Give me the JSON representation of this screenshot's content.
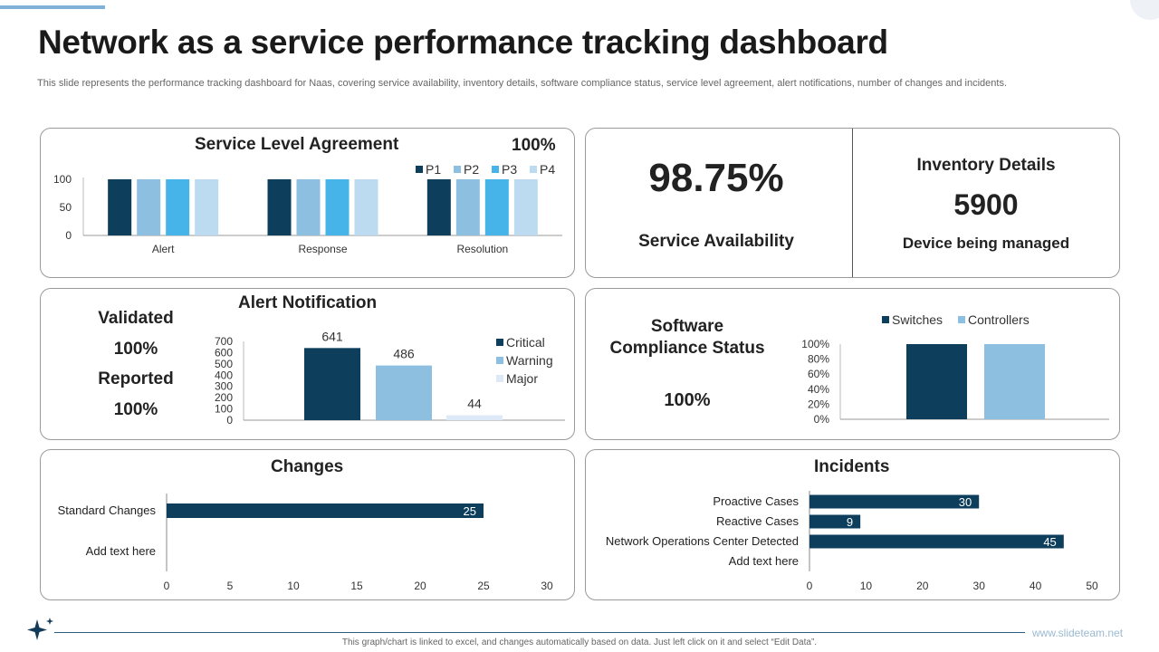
{
  "page": {
    "title": "Network as a service performance tracking dashboard",
    "subtitle": "This slide represents the performance tracking dashboard for Naas, covering service availability, inventory details, software compliance status, service level agreement, alert notifications, number of changes and incidents.",
    "footer_note": "This graph/chart is linked to excel, and changes automatically based on data. Just left click on it and select “Edit Data”.",
    "brand": "www.slideteam.net"
  },
  "sla": {
    "title": "Service Level Agreement",
    "percent": "100%"
  },
  "availability": {
    "value": "98.75%",
    "label": "Service Availability"
  },
  "inventory": {
    "title": "Inventory Details",
    "value": "5900",
    "label": "Device being managed"
  },
  "alert": {
    "title": "Alert Notification",
    "validated_label": "Validated",
    "validated_value": "100%",
    "reported_label": "Reported",
    "reported_value": "100%"
  },
  "software": {
    "title_line1": "Software",
    "title_line2": "Compliance Status",
    "value": "100%"
  },
  "changes": {
    "title": "Changes"
  },
  "incidents": {
    "title": "Incidents"
  },
  "colors": {
    "p1": "#0d3f5c",
    "p2": "#8dbfe0",
    "p3": "#46b4e8",
    "p4": "#bcdaf0",
    "major": "#dde9f7",
    "bar_dark": "#0d3f5c"
  },
  "chart_data": [
    {
      "id": "sla",
      "type": "bar",
      "categories": [
        "Alert",
        "Response",
        "Resolution"
      ],
      "series": [
        {
          "name": "P1",
          "values": [
            100,
            100,
            100
          ]
        },
        {
          "name": "P2",
          "values": [
            100,
            100,
            100
          ]
        },
        {
          "name": "P3",
          "values": [
            100,
            100,
            100
          ]
        },
        {
          "name": "P4",
          "values": [
            100,
            100,
            100
          ]
        }
      ],
      "yticks": [
        "0",
        "50",
        "100"
      ],
      "ylim": [
        0,
        100
      ],
      "legend": "top-right"
    },
    {
      "id": "alert",
      "type": "bar",
      "categories": [
        "Critical",
        "Warning",
        "Major"
      ],
      "values": [
        641,
        486,
        44
      ],
      "labels": [
        "641",
        "486",
        "44"
      ],
      "yticks": [
        "0",
        "100",
        "200",
        "300",
        "400",
        "500",
        "600",
        "700"
      ],
      "ylim": [
        0,
        700
      ],
      "legend": "right"
    },
    {
      "id": "software",
      "type": "bar",
      "series": [
        {
          "name": "Switches",
          "values": [
            100
          ]
        },
        {
          "name": "Controllers",
          "values": [
            100
          ]
        }
      ],
      "yticks": [
        "0%",
        "20%",
        "40%",
        "60%",
        "80%",
        "100%"
      ],
      "ylim": [
        0,
        100
      ],
      "legend": "top"
    },
    {
      "id": "changes",
      "type": "bar",
      "orientation": "horizontal",
      "categories": [
        "Standard Changes",
        "Add text here"
      ],
      "values": [
        25,
        0
      ],
      "labels": [
        "25",
        ""
      ],
      "xticks": [
        "0",
        "5",
        "10",
        "15",
        "20",
        "25",
        "30"
      ],
      "xlim": [
        0,
        30
      ]
    },
    {
      "id": "incidents",
      "type": "bar",
      "orientation": "horizontal",
      "categories": [
        "Proactive Cases",
        "Reactive Cases",
        "Network Operations Center Detected",
        "Add text here"
      ],
      "values": [
        30,
        9,
        45,
        0
      ],
      "labels": [
        "30",
        "9",
        "45",
        ""
      ],
      "xticks": [
        "0",
        "10",
        "20",
        "30",
        "40",
        "50"
      ],
      "xlim": [
        0,
        50
      ]
    }
  ]
}
